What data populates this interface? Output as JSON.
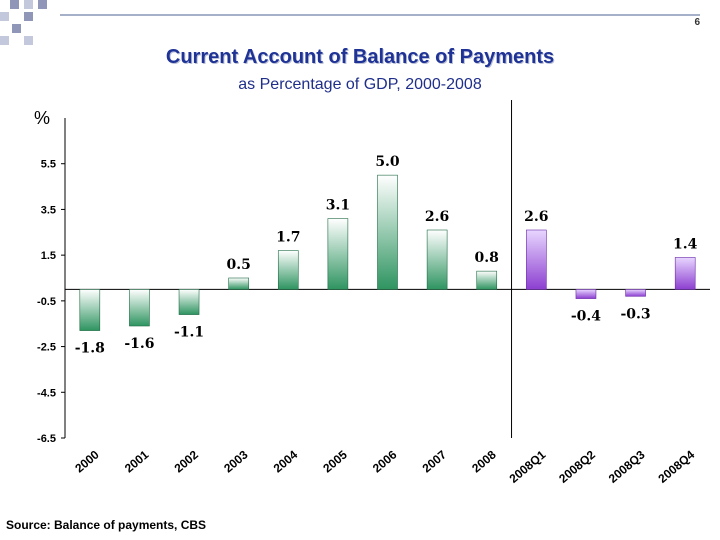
{
  "slide": {
    "page_number": "6",
    "title": "Current Account of Balance of Payments",
    "subtitle": "as Percentage of GDP, 2000-2008",
    "source": "Source: Balance of payments, CBS"
  },
  "colors": {
    "title": "#1f3396",
    "annual_bar": "#2e9460",
    "quarterly_bar": "#8c3fd0",
    "deco_squares": "#8f96b8"
  },
  "chart_data": {
    "type": "bar",
    "ylabel": "%",
    "ylim": [
      -6.5,
      7.5
    ],
    "yticks": [
      -6.5,
      -4.5,
      -2.5,
      -0.5,
      1.5,
      3.5,
      5.5
    ],
    "ytick_labels": [
      "-6.5",
      "-4.5",
      "-2.5",
      "-0.5",
      "1.5",
      "3.5",
      "5.5"
    ],
    "grid": false,
    "categories": [
      "2000",
      "2001",
      "2002",
      "2003",
      "2004",
      "2005",
      "2006",
      "2007",
      "2008",
      "2008Q1",
      "2008Q2",
      "2008Q3",
      "2008Q4"
    ],
    "values": [
      -1.8,
      -1.6,
      -1.1,
      0.5,
      1.7,
      3.1,
      5.0,
      2.6,
      0.8,
      2.6,
      -0.4,
      -0.3,
      1.4
    ],
    "value_labels": [
      "-1.8",
      "-1.6",
      "-1.1",
      "0.5",
      "1.7",
      "3.1",
      "5.0",
      "2.6",
      "0.8",
      "2.6",
      "-0.4",
      "-0.3",
      "1.4"
    ],
    "group": [
      "annual",
      "annual",
      "annual",
      "annual",
      "annual",
      "annual",
      "annual",
      "annual",
      "annual",
      "quarterly",
      "quarterly",
      "quarterly",
      "quarterly"
    ],
    "divider_after": "2008"
  }
}
